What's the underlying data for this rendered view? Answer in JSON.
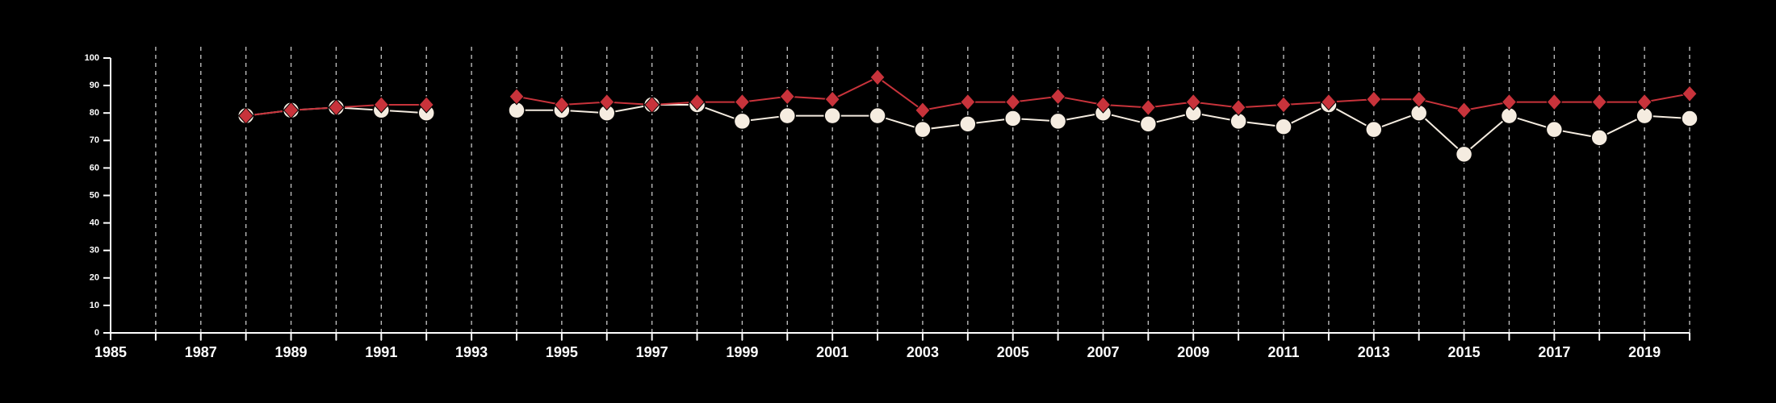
{
  "chart_data": {
    "type": "line",
    "title": "",
    "xlabel": "",
    "ylabel": "",
    "xlim": [
      1985,
      2020
    ],
    "ylim": [
      0,
      100
    ],
    "x_tick_labels": [
      "1985",
      "1987",
      "1989",
      "1991",
      "1993",
      "1995",
      "1997",
      "1999",
      "2001",
      "2003",
      "2005",
      "2007",
      "2009",
      "2011",
      "2013",
      "2015",
      "2017",
      "2019"
    ],
    "y_tick_labels": [
      "0",
      "10",
      "20",
      "30",
      "40",
      "50",
      "60",
      "70",
      "80",
      "90",
      "100"
    ],
    "grid": "vertical dashed lines at every year",
    "legend": "none",
    "series": [
      {
        "marker": "diamond",
        "color": "#c8333b",
        "points": [
          {
            "x": 1988,
            "y": 79
          },
          {
            "x": 1989,
            "y": 81
          },
          {
            "x": 1990,
            "y": 82
          },
          {
            "x": 1991,
            "y": 83
          },
          {
            "x": 1992,
            "y": 83
          },
          {
            "x": 1994,
            "y": 86
          },
          {
            "x": 1995,
            "y": 83
          },
          {
            "x": 1996,
            "y": 84
          },
          {
            "x": 1997,
            "y": 83
          },
          {
            "x": 1998,
            "y": 84
          },
          {
            "x": 1999,
            "y": 84
          },
          {
            "x": 2000,
            "y": 86
          },
          {
            "x": 2001,
            "y": 85
          },
          {
            "x": 2002,
            "y": 93
          },
          {
            "x": 2003,
            "y": 81
          },
          {
            "x": 2004,
            "y": 84
          },
          {
            "x": 2005,
            "y": 84
          },
          {
            "x": 2006,
            "y": 86
          },
          {
            "x": 2007,
            "y": 83
          },
          {
            "x": 2008,
            "y": 82
          },
          {
            "x": 2009,
            "y": 84
          },
          {
            "x": 2010,
            "y": 82
          },
          {
            "x": 2011,
            "y": 83
          },
          {
            "x": 2012,
            "y": 84
          },
          {
            "x": 2013,
            "y": 85
          },
          {
            "x": 2014,
            "y": 85
          },
          {
            "x": 2015,
            "y": 81
          },
          {
            "x": 2016,
            "y": 84
          },
          {
            "x": 2017,
            "y": 84
          },
          {
            "x": 2018,
            "y": 84
          },
          {
            "x": 2019,
            "y": 84
          },
          {
            "x": 2020,
            "y": 87
          }
        ]
      },
      {
        "marker": "circle",
        "color": "#f5ece0",
        "points": [
          {
            "x": 1988,
            "y": 79
          },
          {
            "x": 1989,
            "y": 81
          },
          {
            "x": 1990,
            "y": 82
          },
          {
            "x": 1991,
            "y": 81
          },
          {
            "x": 1992,
            "y": 80
          },
          {
            "x": 1994,
            "y": 81
          },
          {
            "x": 1995,
            "y": 81
          },
          {
            "x": 1996,
            "y": 80
          },
          {
            "x": 1997,
            "y": 83
          },
          {
            "x": 1998,
            "y": 83
          },
          {
            "x": 1999,
            "y": 77
          },
          {
            "x": 2000,
            "y": 79
          },
          {
            "x": 2001,
            "y": 79
          },
          {
            "x": 2002,
            "y": 79
          },
          {
            "x": 2003,
            "y": 74
          },
          {
            "x": 2004,
            "y": 76
          },
          {
            "x": 2005,
            "y": 78
          },
          {
            "x": 2006,
            "y": 77
          },
          {
            "x": 2007,
            "y": 80
          },
          {
            "x": 2008,
            "y": 76
          },
          {
            "x": 2009,
            "y": 80
          },
          {
            "x": 2010,
            "y": 77
          },
          {
            "x": 2011,
            "y": 75
          },
          {
            "x": 2012,
            "y": 83
          },
          {
            "x": 2013,
            "y": 74
          },
          {
            "x": 2014,
            "y": 80
          },
          {
            "x": 2015,
            "y": 65
          },
          {
            "x": 2016,
            "y": 79
          },
          {
            "x": 2017,
            "y": 74
          },
          {
            "x": 2018,
            "y": 71
          },
          {
            "x": 2019,
            "y": 79
          },
          {
            "x": 2020,
            "y": 78
          }
        ]
      }
    ]
  }
}
